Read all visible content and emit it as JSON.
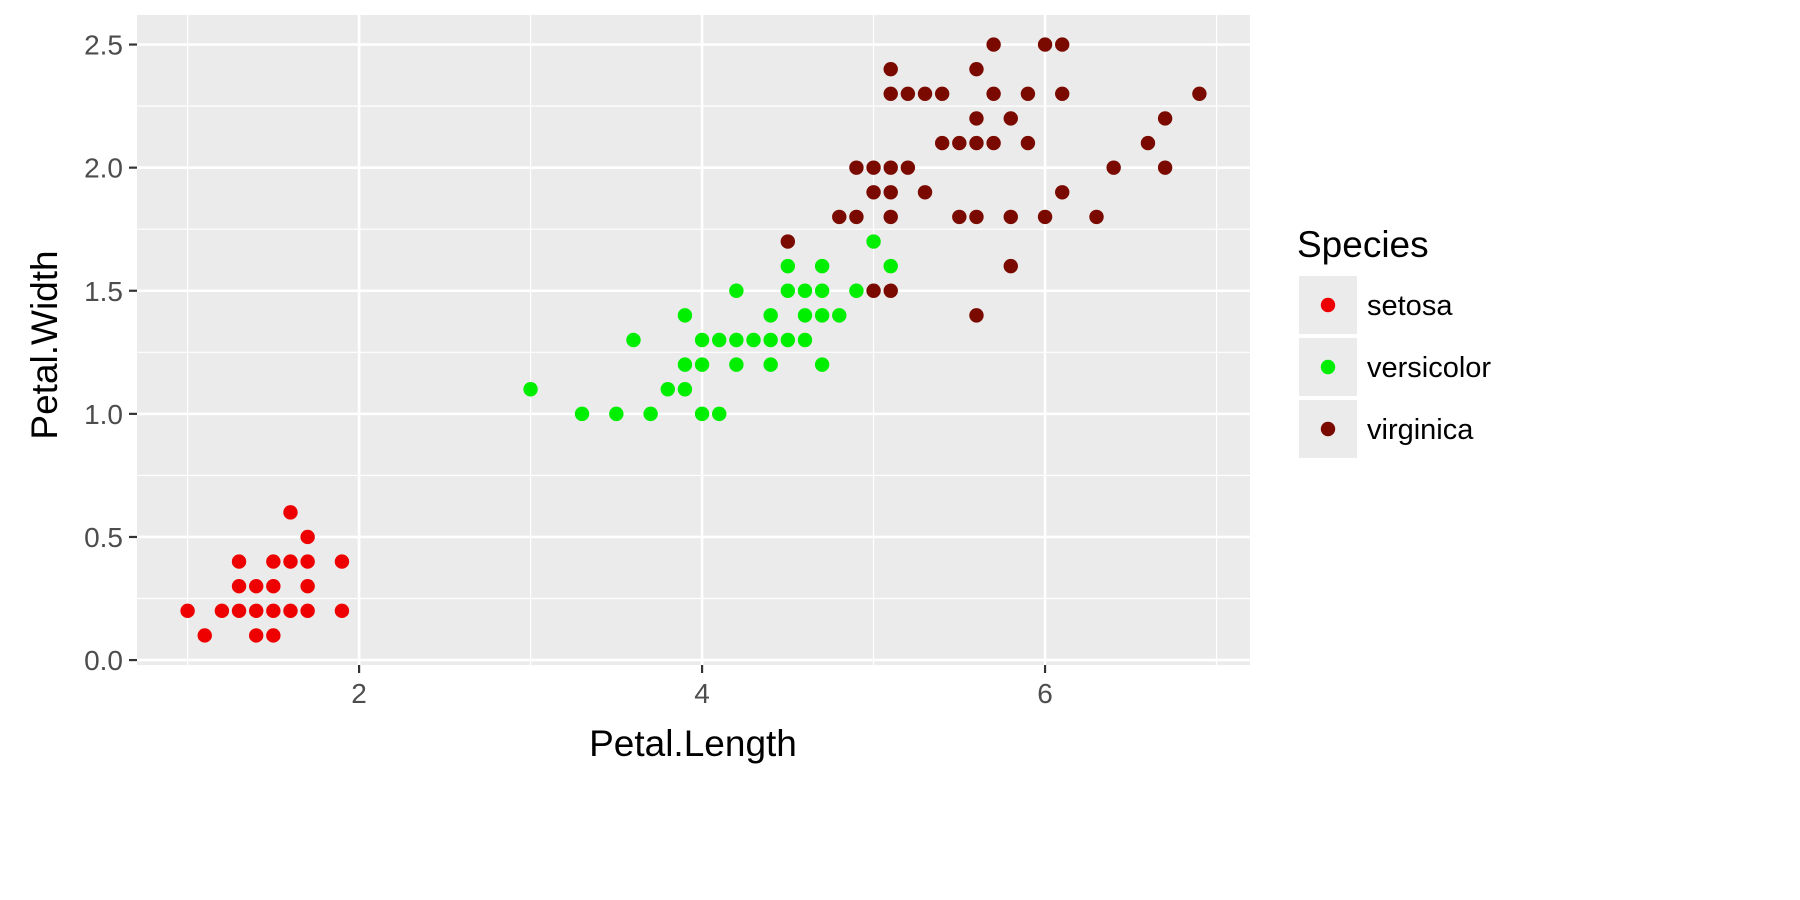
{
  "chart_data": {
    "type": "scatter",
    "title": "",
    "xlabel": "Petal.Length",
    "ylabel": "Petal.Width",
    "xlim": [
      0.705,
      7.195
    ],
    "ylim": [
      -0.02,
      2.62
    ],
    "x_ticks": [
      {
        "value": 2,
        "label": "2"
      },
      {
        "value": 4,
        "label": "4"
      },
      {
        "value": 6,
        "label": "6"
      }
    ],
    "y_ticks": [
      {
        "value": 0.0,
        "label": "0.0"
      },
      {
        "value": 0.5,
        "label": "0.5"
      },
      {
        "value": 1.0,
        "label": "1.0"
      },
      {
        "value": 1.5,
        "label": "1.5"
      },
      {
        "value": 2.0,
        "label": "2.0"
      },
      {
        "value": 2.5,
        "label": "2.5"
      }
    ],
    "grid": true,
    "panel_background": "#EBEBEB",
    "grid_color": "#FFFFFF",
    "legend": {
      "title": "Species",
      "position": "right"
    },
    "series": [
      {
        "name": "setosa",
        "color": "#EE0000",
        "points": [
          [
            1.0,
            0.2
          ],
          [
            1.1,
            0.1
          ],
          [
            1.2,
            0.2
          ],
          [
            1.3,
            0.2
          ],
          [
            1.3,
            0.3
          ],
          [
            1.3,
            0.4
          ],
          [
            1.4,
            0.1
          ],
          [
            1.4,
            0.2
          ],
          [
            1.4,
            0.3
          ],
          [
            1.5,
            0.1
          ],
          [
            1.5,
            0.2
          ],
          [
            1.5,
            0.3
          ],
          [
            1.5,
            0.4
          ],
          [
            1.6,
            0.2
          ],
          [
            1.6,
            0.4
          ],
          [
            1.6,
            0.6
          ],
          [
            1.7,
            0.2
          ],
          [
            1.7,
            0.3
          ],
          [
            1.7,
            0.4
          ],
          [
            1.7,
            0.5
          ],
          [
            1.9,
            0.2
          ],
          [
            1.9,
            0.4
          ]
        ]
      },
      {
        "name": "versicolor",
        "color": "#00EE00",
        "points": [
          [
            3.0,
            1.1
          ],
          [
            3.3,
            1.0
          ],
          [
            3.5,
            1.0
          ],
          [
            3.6,
            1.3
          ],
          [
            3.7,
            1.0
          ],
          [
            3.8,
            1.1
          ],
          [
            3.9,
            1.1
          ],
          [
            3.9,
            1.2
          ],
          [
            3.9,
            1.4
          ],
          [
            4.0,
            1.0
          ],
          [
            4.0,
            1.2
          ],
          [
            4.0,
            1.3
          ],
          [
            4.1,
            1.0
          ],
          [
            4.1,
            1.3
          ],
          [
            4.2,
            1.2
          ],
          [
            4.2,
            1.3
          ],
          [
            4.2,
            1.5
          ],
          [
            4.3,
            1.3
          ],
          [
            4.4,
            1.2
          ],
          [
            4.4,
            1.3
          ],
          [
            4.4,
            1.4
          ],
          [
            4.5,
            1.3
          ],
          [
            4.5,
            1.5
          ],
          [
            4.5,
            1.6
          ],
          [
            4.6,
            1.3
          ],
          [
            4.6,
            1.4
          ],
          [
            4.6,
            1.5
          ],
          [
            4.7,
            1.2
          ],
          [
            4.7,
            1.4
          ],
          [
            4.7,
            1.5
          ],
          [
            4.7,
            1.6
          ],
          [
            4.8,
            1.4
          ],
          [
            4.9,
            1.5
          ],
          [
            5.0,
            1.7
          ],
          [
            5.1,
            1.6
          ]
        ]
      },
      {
        "name": "virginica",
        "color": "#7A0A00",
        "points": [
          [
            4.5,
            1.7
          ],
          [
            4.8,
            1.8
          ],
          [
            4.9,
            1.8
          ],
          [
            4.9,
            2.0
          ],
          [
            5.0,
            1.5
          ],
          [
            5.0,
            1.9
          ],
          [
            5.0,
            2.0
          ],
          [
            5.1,
            1.5
          ],
          [
            5.1,
            1.8
          ],
          [
            5.1,
            1.9
          ],
          [
            5.1,
            2.0
          ],
          [
            5.1,
            2.3
          ],
          [
            5.1,
            2.4
          ],
          [
            5.2,
            2.0
          ],
          [
            5.2,
            2.3
          ],
          [
            5.3,
            1.9
          ],
          [
            5.3,
            2.3
          ],
          [
            5.4,
            2.1
          ],
          [
            5.4,
            2.3
          ],
          [
            5.5,
            1.8
          ],
          [
            5.5,
            2.1
          ],
          [
            5.6,
            1.4
          ],
          [
            5.6,
            1.8
          ],
          [
            5.6,
            2.1
          ],
          [
            5.6,
            2.2
          ],
          [
            5.6,
            2.4
          ],
          [
            5.7,
            2.1
          ],
          [
            5.7,
            2.3
          ],
          [
            5.7,
            2.5
          ],
          [
            5.8,
            1.6
          ],
          [
            5.8,
            1.8
          ],
          [
            5.8,
            2.2
          ],
          [
            5.9,
            2.1
          ],
          [
            5.9,
            2.3
          ],
          [
            6.0,
            1.8
          ],
          [
            6.0,
            2.5
          ],
          [
            6.1,
            1.9
          ],
          [
            6.1,
            2.3
          ],
          [
            6.1,
            2.5
          ],
          [
            6.3,
            1.8
          ],
          [
            6.4,
            2.0
          ],
          [
            6.6,
            2.1
          ],
          [
            6.7,
            2.0
          ],
          [
            6.7,
            2.2
          ],
          [
            6.9,
            2.3
          ]
        ]
      }
    ]
  }
}
